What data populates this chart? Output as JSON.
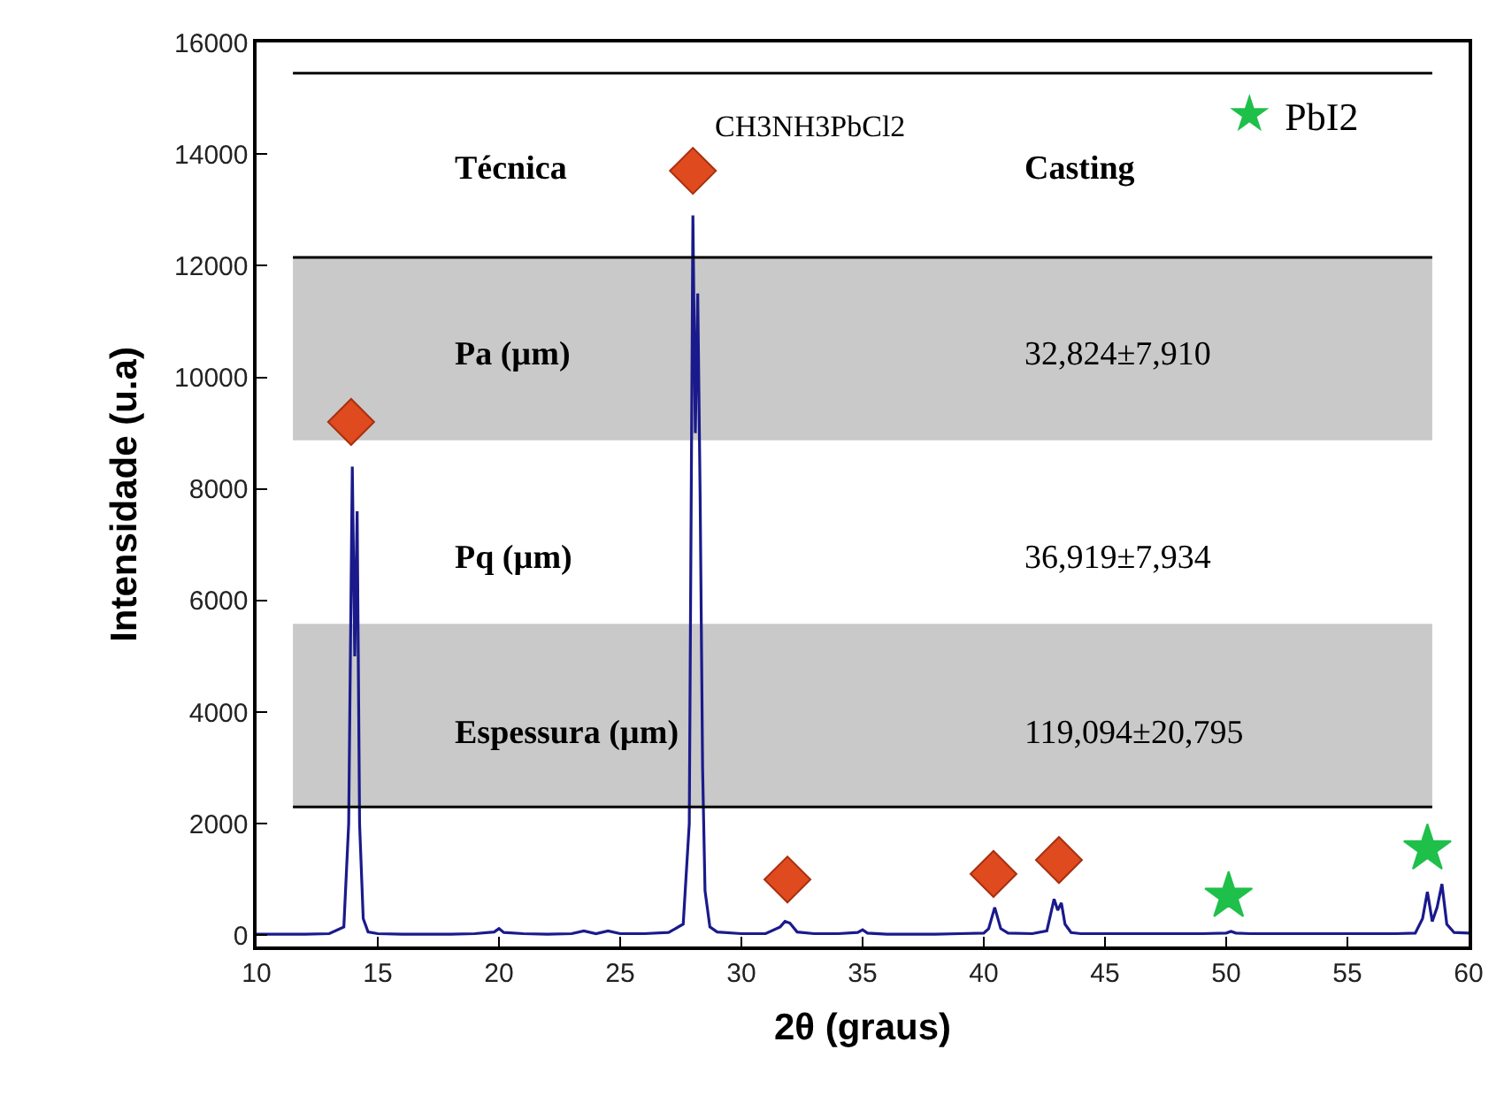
{
  "chart_data": {
    "type": "line",
    "xlabel": "2θ (graus)",
    "ylabel": "Intensidade (u.a)",
    "xlim": [
      10,
      60
    ],
    "xticks": [
      10,
      15,
      20,
      25,
      30,
      35,
      40,
      45,
      50,
      55,
      60
    ],
    "ylim": [
      -200,
      16000
    ],
    "yticks": [
      0,
      2000,
      4000,
      6000,
      8000,
      10000,
      12000,
      14000,
      16000
    ],
    "grid": false,
    "legend": "top right",
    "series": [
      {
        "color": "#1a1a8c",
        "marker": "none",
        "line_style": "solid",
        "x": [
          10,
          11,
          12,
          13,
          13.6,
          13.8,
          13.95,
          14.05,
          14.15,
          14.25,
          14.4,
          14.6,
          15,
          16,
          17,
          18,
          19,
          19.8,
          20,
          20.2,
          21,
          22,
          23,
          23.5,
          24,
          24.5,
          25,
          26,
          27,
          27.6,
          27.85,
          28.0,
          28.1,
          28.2,
          28.3,
          28.4,
          28.5,
          28.7,
          29,
          30,
          31,
          31.6,
          31.8,
          32.0,
          32.3,
          33,
          34,
          34.8,
          35,
          35.2,
          36,
          37,
          38,
          39,
          40,
          40.2,
          40.45,
          40.7,
          41,
          42,
          42.6,
          42.9,
          43.05,
          43.2,
          43.35,
          43.6,
          44,
          45,
          46,
          47,
          48,
          49,
          50,
          50.2,
          50.4,
          51,
          52,
          53,
          54,
          55,
          56,
          57,
          57.8,
          58.1,
          58.3,
          58.5,
          58.7,
          58.9,
          59.1,
          59.4,
          60
        ],
        "values": [
          20,
          20,
          20,
          30,
          150,
          2000,
          8400,
          5000,
          7600,
          2000,
          300,
          60,
          30,
          20,
          20,
          20,
          30,
          60,
          120,
          50,
          30,
          20,
          30,
          80,
          30,
          80,
          30,
          30,
          50,
          200,
          2000,
          12900,
          9000,
          11500,
          7800,
          3000,
          800,
          150,
          60,
          30,
          30,
          150,
          250,
          220,
          60,
          30,
          30,
          50,
          100,
          40,
          20,
          20,
          20,
          30,
          40,
          120,
          500,
          120,
          40,
          30,
          80,
          650,
          450,
          580,
          200,
          50,
          30,
          30,
          30,
          30,
          30,
          30,
          40,
          70,
          40,
          30,
          30,
          30,
          30,
          30,
          30,
          30,
          40,
          300,
          780,
          250,
          500,
          920,
          200,
          50,
          40
        ]
      },
      {
        "type": "scatter",
        "name": "CH3NH3PbCl2",
        "color": "#e04a1f",
        "marker": "diamond",
        "x": [
          13.9,
          28.0,
          31.9,
          40.4,
          43.1
        ],
        "values": [
          9200,
          13700,
          1000,
          1100,
          1350
        ]
      },
      {
        "type": "scatter",
        "name": "PbI2",
        "color": "#1ec04a",
        "marker": "star",
        "x": [
          50.1,
          58.3
        ],
        "values": [
          700,
          1550
        ]
      }
    ],
    "bands": [
      {
        "axis": "y",
        "from": 8870,
        "to": 12150,
        "color": "#c9c9c9"
      },
      {
        "axis": "y",
        "from": 2300,
        "to": 5580,
        "color": "#c9c9c9"
      }
    ],
    "ref_lines": [
      {
        "axis": "y",
        "value": 15450,
        "color": "#000000"
      },
      {
        "axis": "y",
        "value": 12150,
        "color": "#000000"
      },
      {
        "axis": "y",
        "value": 2300,
        "color": "#000000"
      }
    ],
    "annotations": [
      "Técnica",
      "Casting",
      "Pa (µm)",
      "32,824±7,910",
      "Pq (µm)",
      "36,919±7,934",
      "Espessura (µm)",
      "119,094±20,795"
    ]
  }
}
